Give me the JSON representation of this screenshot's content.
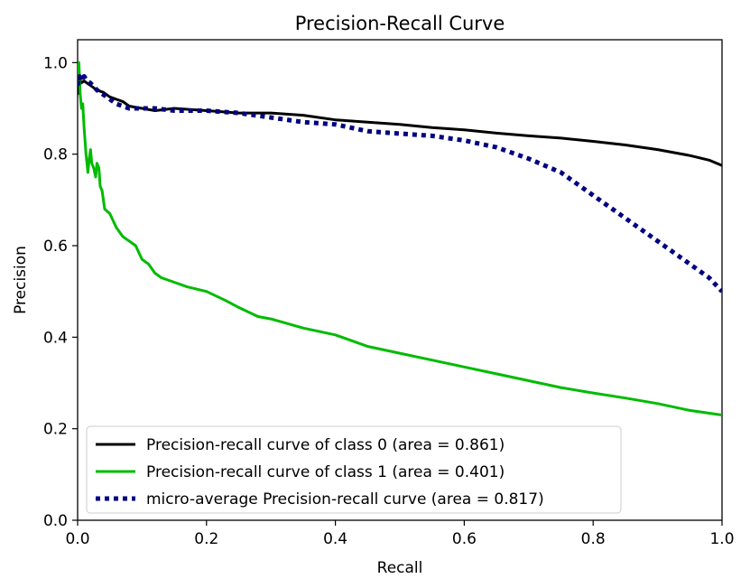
{
  "chart_data": {
    "type": "line",
    "title": "Precision-Recall Curve",
    "xlabel": "Recall",
    "ylabel": "Precision",
    "xlim": [
      0.0,
      1.0
    ],
    "ylim": [
      0.0,
      1.05
    ],
    "xticks": [
      0.0,
      0.2,
      0.4,
      0.6,
      0.8,
      1.0
    ],
    "xtick_labels": [
      "0.0",
      "0.2",
      "0.4",
      "0.6",
      "0.8",
      "1.0"
    ],
    "yticks": [
      0.0,
      0.2,
      0.4,
      0.6,
      0.8,
      1.0
    ],
    "ytick_labels": [
      "0.0",
      "0.2",
      "0.4",
      "0.6",
      "0.8",
      "1.0"
    ],
    "grid": false,
    "legend_position": "lower-left",
    "series": [
      {
        "name": "Precision-recall curve of class 0 (area = 0.861)",
        "color": "#000000",
        "style": "solid",
        "x": [
          0.0,
          0.002,
          0.005,
          0.01,
          0.02,
          0.03,
          0.04,
          0.05,
          0.06,
          0.07,
          0.08,
          0.1,
          0.12,
          0.15,
          0.2,
          0.25,
          0.3,
          0.35,
          0.4,
          0.45,
          0.5,
          0.55,
          0.6,
          0.65,
          0.7,
          0.75,
          0.8,
          0.85,
          0.9,
          0.95,
          0.98,
          1.0
        ],
        "y": [
          0.93,
          0.97,
          0.955,
          0.96,
          0.95,
          0.94,
          0.935,
          0.925,
          0.92,
          0.915,
          0.905,
          0.9,
          0.895,
          0.9,
          0.895,
          0.89,
          0.89,
          0.885,
          0.875,
          0.87,
          0.865,
          0.858,
          0.853,
          0.846,
          0.84,
          0.835,
          0.828,
          0.82,
          0.81,
          0.797,
          0.787,
          0.775
        ]
      },
      {
        "name": "Precision-recall curve of class 1 (area = 0.401)",
        "color": "#00bb00",
        "style": "solid",
        "x": [
          0.0,
          0.002,
          0.004,
          0.006,
          0.008,
          0.01,
          0.013,
          0.016,
          0.018,
          0.02,
          0.022,
          0.025,
          0.028,
          0.03,
          0.033,
          0.035,
          0.038,
          0.042,
          0.05,
          0.06,
          0.07,
          0.08,
          0.09,
          0.1,
          0.11,
          0.12,
          0.13,
          0.15,
          0.17,
          0.2,
          0.23,
          0.25,
          0.28,
          0.3,
          0.35,
          0.4,
          0.45,
          0.5,
          0.55,
          0.6,
          0.65,
          0.7,
          0.75,
          0.8,
          0.85,
          0.9,
          0.95,
          1.0
        ],
        "y": [
          0.97,
          1.0,
          0.93,
          0.9,
          0.91,
          0.86,
          0.8,
          0.76,
          0.79,
          0.81,
          0.78,
          0.77,
          0.75,
          0.78,
          0.77,
          0.73,
          0.72,
          0.68,
          0.67,
          0.64,
          0.62,
          0.61,
          0.6,
          0.57,
          0.56,
          0.54,
          0.53,
          0.52,
          0.51,
          0.5,
          0.48,
          0.465,
          0.445,
          0.44,
          0.42,
          0.405,
          0.38,
          0.365,
          0.35,
          0.335,
          0.32,
          0.305,
          0.29,
          0.278,
          0.267,
          0.255,
          0.24,
          0.23
        ]
      },
      {
        "name": "micro-average Precision-recall curve (area = 0.817)",
        "color": "#000080",
        "style": "dotted",
        "x": [
          0.0,
          0.003,
          0.006,
          0.01,
          0.015,
          0.02,
          0.03,
          0.04,
          0.05,
          0.06,
          0.07,
          0.08,
          0.1,
          0.12,
          0.15,
          0.2,
          0.25,
          0.3,
          0.35,
          0.4,
          0.45,
          0.5,
          0.55,
          0.6,
          0.65,
          0.7,
          0.75,
          0.8,
          0.85,
          0.9,
          0.95,
          0.98,
          1.0
        ],
        "y": [
          0.95,
          0.97,
          0.96,
          0.97,
          0.96,
          0.955,
          0.94,
          0.93,
          0.92,
          0.91,
          0.905,
          0.9,
          0.9,
          0.9,
          0.895,
          0.895,
          0.89,
          0.88,
          0.87,
          0.865,
          0.85,
          0.845,
          0.84,
          0.83,
          0.815,
          0.79,
          0.76,
          0.71,
          0.66,
          0.61,
          0.56,
          0.53,
          0.5
        ]
      }
    ]
  }
}
